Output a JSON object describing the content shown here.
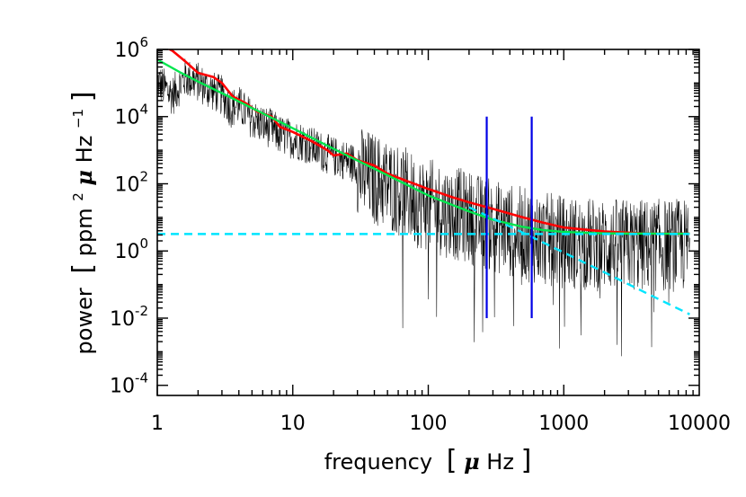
{
  "chart_data": {
    "type": "line",
    "xlabel": {
      "text": "frequency",
      "open": "[",
      "mu": "μ",
      "unit": "Hz",
      "close": "]"
    },
    "ylabel": {
      "text": "power",
      "open": "[",
      "unit1": "ppm",
      "sup1": "2",
      "mu": "μ",
      "unit2": "Hz",
      "sup2": "−1",
      "close": "]"
    },
    "x_scale": "log",
    "y_scale": "log",
    "xlim": [
      1,
      10000
    ],
    "ylim": [
      5e-05,
      1000000
    ],
    "x_ticks": [
      {
        "value": 1,
        "label": "1"
      },
      {
        "value": 10,
        "label": "10"
      },
      {
        "value": 100,
        "label": "100"
      },
      {
        "value": 1000,
        "label": "1000"
      },
      {
        "value": 10000,
        "label": "10000"
      }
    ],
    "y_ticks": [
      {
        "value": 1000000,
        "base": "10",
        "exp": "6"
      },
      {
        "value": 10000,
        "base": "10",
        "exp": "4"
      },
      {
        "value": 100,
        "base": "10",
        "exp": "2"
      },
      {
        "value": 1,
        "base": "10",
        "exp": "0"
      },
      {
        "value": 0.01,
        "base": "10",
        "exp": "-2"
      },
      {
        "value": 0.0001,
        "base": "10",
        "exp": "-4"
      }
    ],
    "grid": false,
    "colors": {
      "spectrum": "#000000",
      "smoothed": "#ff0000",
      "fit": "#00e64d",
      "granulation": "#00e5ff",
      "noise": "#00e5ff",
      "markers": "#0000e6"
    },
    "series": [
      {
        "style": "thin-black",
        "x": [
          1,
          1.3,
          1.6,
          2,
          2.4,
          3,
          3.5,
          4,
          4.5,
          5,
          6,
          7,
          8,
          10,
          12,
          15,
          20,
          25,
          30,
          40,
          50,
          60,
          70,
          80,
          100,
          120,
          150,
          200,
          250,
          300,
          400,
          500,
          700,
          1000,
          1500,
          2000,
          3000,
          5000,
          8500
        ],
        "y": [
          150000,
          60000,
          200000,
          150000,
          90000,
          60000,
          25000,
          30000,
          18000,
          12000,
          8000,
          6000,
          4000,
          3000,
          2500,
          1500,
          900,
          700,
          500,
          300,
          200,
          150,
          100,
          70,
          50,
          40,
          30,
          22,
          16,
          12,
          9,
          7,
          5,
          4,
          3.5,
          3.3,
          3.2,
          3.2,
          3.2
        ]
      },
      {
        "style": "thick-red",
        "x": [
          1,
          1.3,
          1.6,
          2,
          2.6,
          3,
          3.6,
          4.5,
          5.5,
          7,
          8,
          10,
          14,
          18,
          20,
          25,
          30,
          40,
          50,
          70,
          100,
          150,
          200,
          300,
          500,
          700,
          1000,
          2000,
          4000,
          8500
        ],
        "y": [
          1600000,
          900000,
          450000,
          200000,
          150000,
          100000,
          40000,
          25000,
          14000,
          10000,
          5000,
          3500,
          1800,
          1000,
          700,
          800,
          500,
          350,
          200,
          120,
          70,
          40,
          28,
          18,
          10,
          7,
          5,
          3.8,
          3.3,
          3.3
        ]
      },
      {
        "style": "fit-green",
        "x": [
          1,
          1.5,
          2,
          3,
          5,
          10,
          20,
          50,
          100,
          200,
          300,
          500,
          700,
          1000,
          1500,
          2000,
          3000,
          5000,
          8500
        ],
        "y": [
          500000,
          200000,
          110000,
          50000,
          18000,
          4500,
          1100,
          180,
          45,
          15,
          8.5,
          5.2,
          4.2,
          3.7,
          3.45,
          3.35,
          3.3,
          3.28,
          3.27
        ]
      },
      {
        "style": "dashed-cyan",
        "x": [
          200,
          500,
          1000,
          2000,
          5000,
          8500
        ],
        "y": [
          20,
          3.5,
          0.9,
          0.23,
          0.037,
          0.013
        ]
      },
      {
        "style": "dashed-cyan",
        "x": [
          1,
          8500
        ],
        "y": [
          3.2,
          3.2
        ]
      },
      {
        "style": "vline-blue",
        "x": [
          270,
          270
        ],
        "y": [
          10000,
          0.01
        ]
      },
      {
        "style": "vline-blue",
        "x": [
          580,
          580
        ],
        "y": [
          10000,
          0.01
        ]
      }
    ]
  }
}
